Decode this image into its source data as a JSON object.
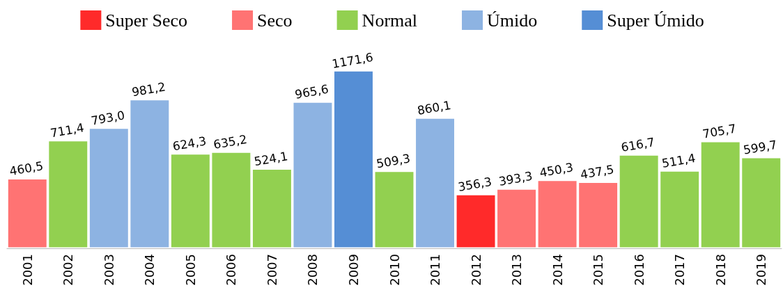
{
  "chart_data": {
    "type": "bar",
    "categories": [
      "2001",
      "2002",
      "2003",
      "2004",
      "2005",
      "2006",
      "2007",
      "2008",
      "2009",
      "2010",
      "2011",
      "2012",
      "2013",
      "2014",
      "2015",
      "2016",
      "2017",
      "2018",
      "2019"
    ],
    "legend": "top",
    "series": [
      {
        "name": "Super Seco",
        "color": "#ff2a2a",
        "values": [
          null,
          null,
          null,
          null,
          null,
          null,
          null,
          null,
          null,
          null,
          null,
          356.3,
          null,
          null,
          null,
          null,
          null,
          null,
          null
        ],
        "value_labels": [
          null,
          null,
          null,
          null,
          null,
          null,
          null,
          null,
          null,
          null,
          null,
          "356,3",
          null,
          null,
          null,
          null,
          null,
          null,
          null
        ]
      },
      {
        "name": "Seco",
        "color": "#ff7373",
        "values": [
          460.5,
          null,
          null,
          null,
          null,
          null,
          null,
          null,
          null,
          null,
          null,
          null,
          393.3,
          450.3,
          437.5,
          null,
          null,
          null,
          null
        ],
        "value_labels": [
          "460,5",
          null,
          null,
          null,
          null,
          null,
          null,
          null,
          null,
          null,
          null,
          null,
          "393,3",
          "450,3",
          "437,5",
          null,
          null,
          null,
          null
        ]
      },
      {
        "name": "Normal",
        "color": "#92d050",
        "values": [
          null,
          711.4,
          null,
          null,
          624.3,
          635.2,
          524.1,
          null,
          null,
          509.3,
          null,
          null,
          null,
          null,
          null,
          616.7,
          511.4,
          705.7,
          599.7
        ],
        "value_labels": [
          null,
          "711,4",
          null,
          null,
          "624,3",
          "635,2",
          "524,1",
          null,
          null,
          "509,3",
          null,
          null,
          null,
          null,
          null,
          "616,7",
          "511,4",
          "705,7",
          "599,7"
        ]
      },
      {
        "name": "Úmido",
        "color": "#8db3e2",
        "values": [
          null,
          null,
          793.0,
          981.2,
          null,
          null,
          null,
          965.6,
          null,
          null,
          860.1,
          null,
          null,
          null,
          null,
          null,
          null,
          null,
          null
        ],
        "value_labels": [
          null,
          null,
          "793,0",
          "981,2",
          null,
          null,
          null,
          "965,6",
          null,
          null,
          "860,1",
          null,
          null,
          null,
          null,
          null,
          null,
          null,
          null
        ]
      },
      {
        "name": "Super Úmido",
        "color": "#558ed5",
        "values": [
          null,
          null,
          null,
          null,
          null,
          null,
          null,
          null,
          1171.6,
          null,
          null,
          null,
          null,
          null,
          null,
          null,
          null,
          null,
          null
        ],
        "value_labels": [
          null,
          null,
          null,
          null,
          null,
          null,
          null,
          null,
          "1171,6",
          null,
          null,
          null,
          null,
          null,
          null,
          null,
          null,
          null,
          null
        ]
      }
    ]
  }
}
